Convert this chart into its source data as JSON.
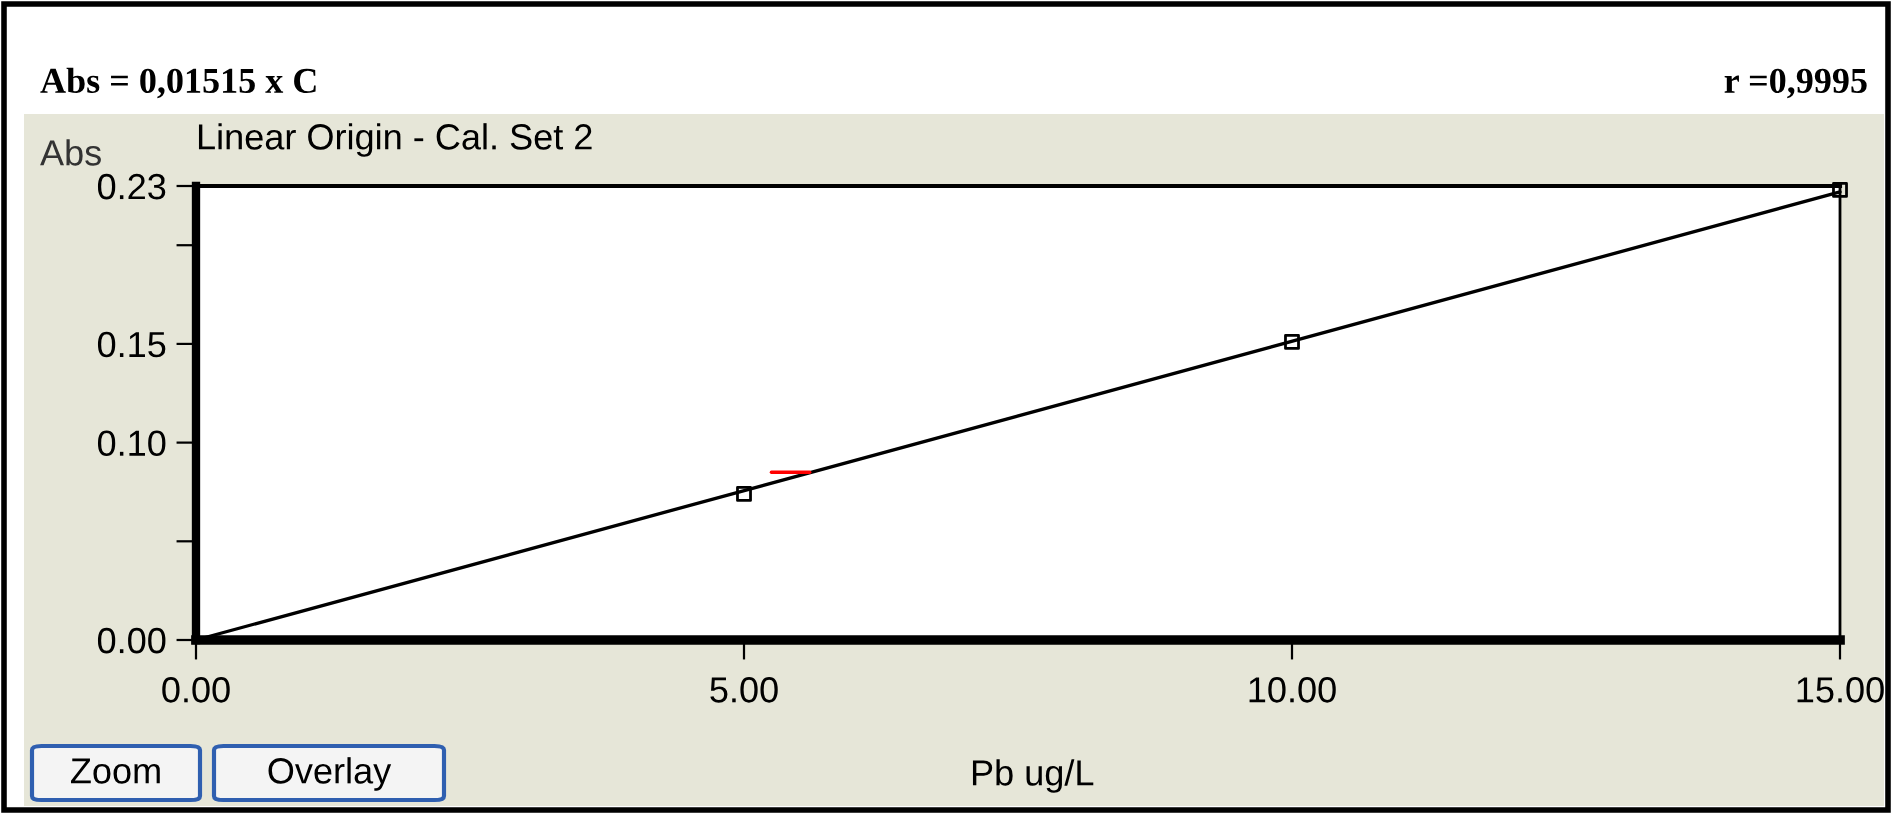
{
  "chart_data": {
    "type": "scatter",
    "title": "Linear Origin - Cal. Set 2",
    "xlabel": "Pb ug/L",
    "ylabel": "Abs",
    "annotations": [
      "Abs = 0,01515 x C",
      "r =0,9995",
      "Zoom",
      "Overlay"
    ],
    "series": [
      {
        "type": "line",
        "color": "#000000",
        "x": [
          0,
          15
        ],
        "values": [
          0,
          0.227
        ],
        "marker": "none"
      },
      {
        "color": "#000000",
        "x": [
          5,
          10,
          15
        ],
        "values": [
          0.074,
          0.151,
          0.228
        ],
        "marker": "square"
      },
      {
        "type": "line",
        "color": "#ff0000",
        "x": [
          5.25,
          5.6
        ],
        "values": [
          0.085,
          0.085
        ],
        "marker": "none"
      }
    ],
    "xlim": [
      0,
      15
    ],
    "ylim": [
      0,
      0.23
    ],
    "xticks": [
      {
        "value": 0,
        "label": "0.00"
      },
      {
        "value": 5,
        "label": "5.00"
      },
      {
        "value": 10,
        "label": "10.00"
      },
      {
        "value": 15,
        "label": "15.00"
      }
    ],
    "yticks": [
      {
        "value": 0,
        "label": "0.00"
      },
      {
        "value": 0.05,
        "label": null
      },
      {
        "value": 0.1,
        "label": "0.10"
      },
      {
        "value": 0.15,
        "label": "0.15"
      },
      {
        "value": 0.2,
        "label": null
      },
      {
        "value": 0.23,
        "label": "0.23"
      }
    ],
    "grid": false,
    "legend": false
  }
}
